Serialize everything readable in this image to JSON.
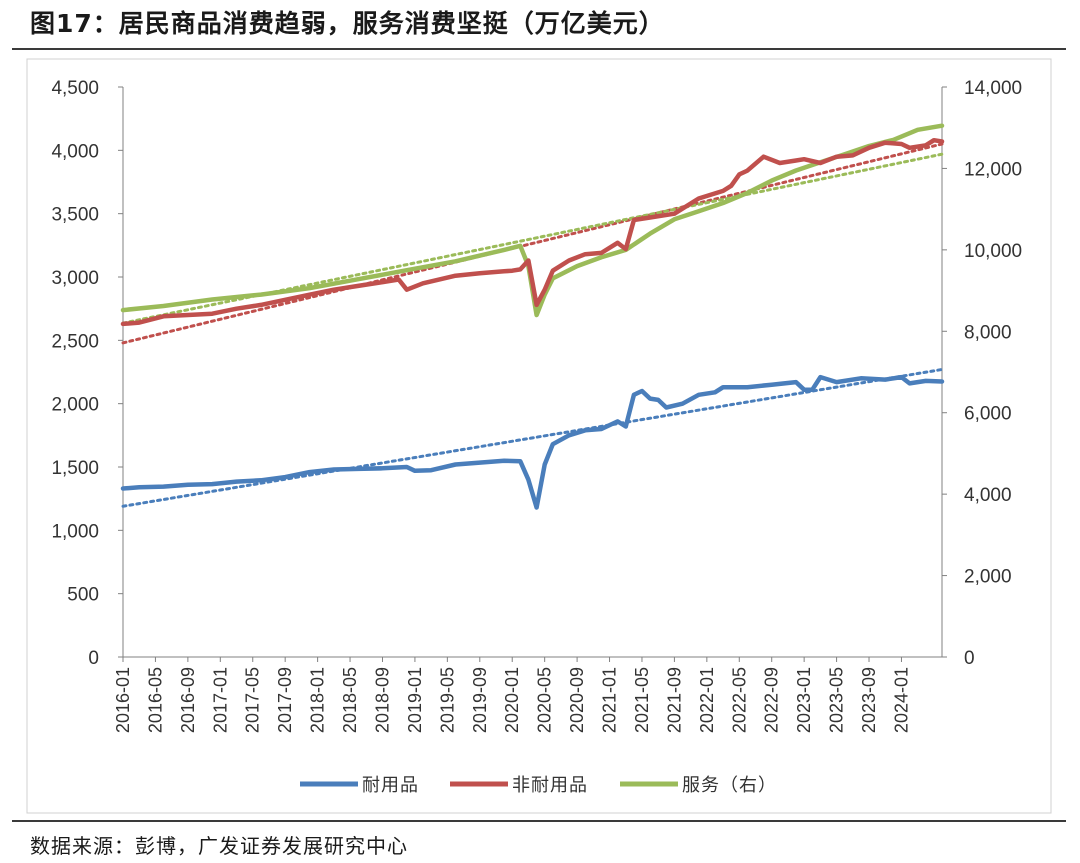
{
  "header": {
    "title": "图17：居民商品消费趋弱，服务消费坚挺（万亿美元）"
  },
  "footer": {
    "source": "数据来源：彭博，广发证券发展研究中心"
  },
  "chart_data": {
    "type": "line",
    "x_start": "2016-01",
    "x_tick_labels": [
      "2016-01",
      "2016-05",
      "2016-09",
      "2017-01",
      "2017-05",
      "2017-09",
      "2018-01",
      "2018-05",
      "2018-09",
      "2019-01",
      "2019-05",
      "2019-09",
      "2020-01",
      "2020-05",
      "2020-09",
      "2021-01",
      "2021-05",
      "2021-09",
      "2022-01",
      "2022-05",
      "2022-09",
      "2023-01",
      "2023-05",
      "2023-09",
      "2024-01"
    ],
    "y_left": {
      "ticks": [
        0,
        500,
        1000,
        1500,
        2000,
        2500,
        3000,
        3500,
        4000,
        4500
      ],
      "labels": [
        "0",
        "500",
        "1,000",
        "1,500",
        "2,000",
        "2,500",
        "3,000",
        "3,500",
        "4,000",
        "4,500"
      ],
      "min": 0,
      "max": 4500
    },
    "y_right": {
      "ticks": [
        0,
        2000,
        4000,
        6000,
        8000,
        10000,
        12000,
        14000
      ],
      "labels": [
        "0",
        "2,000",
        "4,000",
        "6,000",
        "8,000",
        "10,000",
        "12,000",
        "14,000"
      ],
      "min": 0,
      "max": 14000
    },
    "grid": false,
    "legend_position": "bottom",
    "series": [
      {
        "name": "耐用品",
        "axis": "left",
        "color": "#4a7ebb",
        "points": [
          [
            "2016-01",
            1330
          ],
          [
            "2016-03",
            1340
          ],
          [
            "2016-06",
            1345
          ],
          [
            "2016-09",
            1360
          ],
          [
            "2016-12",
            1365
          ],
          [
            "2017-03",
            1385
          ],
          [
            "2017-06",
            1395
          ],
          [
            "2017-09",
            1420
          ],
          [
            "2017-12",
            1460
          ],
          [
            "2018-03",
            1480
          ],
          [
            "2018-06",
            1485
          ],
          [
            "2018-09",
            1490
          ],
          [
            "2018-12",
            1500
          ],
          [
            "2019-01",
            1470
          ],
          [
            "2019-03",
            1475
          ],
          [
            "2019-06",
            1520
          ],
          [
            "2019-09",
            1535
          ],
          [
            "2019-12",
            1550
          ],
          [
            "2020-02",
            1545
          ],
          [
            "2020-03",
            1400
          ],
          [
            "2020-04",
            1180
          ],
          [
            "2020-05",
            1520
          ],
          [
            "2020-06",
            1680
          ],
          [
            "2020-08",
            1750
          ],
          [
            "2020-10",
            1790
          ],
          [
            "2020-12",
            1800
          ],
          [
            "2021-02",
            1860
          ],
          [
            "2021-03",
            1820
          ],
          [
            "2021-04",
            2070
          ],
          [
            "2021-05",
            2100
          ],
          [
            "2021-06",
            2040
          ],
          [
            "2021-07",
            2030
          ],
          [
            "2021-08",
            1970
          ],
          [
            "2021-10",
            2000
          ],
          [
            "2021-12",
            2070
          ],
          [
            "2022-02",
            2090
          ],
          [
            "2022-03",
            2130
          ],
          [
            "2022-06",
            2130
          ],
          [
            "2022-09",
            2150
          ],
          [
            "2022-12",
            2170
          ],
          [
            "2023-01",
            2110
          ],
          [
            "2023-02",
            2110
          ],
          [
            "2023-03",
            2210
          ],
          [
            "2023-05",
            2170
          ],
          [
            "2023-08",
            2200
          ],
          [
            "2023-11",
            2190
          ],
          [
            "2024-01",
            2210
          ],
          [
            "2024-02",
            2160
          ],
          [
            "2024-04",
            2180
          ],
          [
            "2024-06",
            2175
          ]
        ]
      },
      {
        "name": "非耐用品",
        "axis": "left",
        "color": "#c0504d",
        "points": [
          [
            "2016-01",
            2630
          ],
          [
            "2016-03",
            2640
          ],
          [
            "2016-06",
            2690
          ],
          [
            "2016-09",
            2700
          ],
          [
            "2016-12",
            2710
          ],
          [
            "2017-03",
            2750
          ],
          [
            "2017-06",
            2780
          ],
          [
            "2017-09",
            2820
          ],
          [
            "2017-12",
            2860
          ],
          [
            "2018-03",
            2900
          ],
          [
            "2018-06",
            2930
          ],
          [
            "2018-09",
            2960
          ],
          [
            "2018-11",
            2980
          ],
          [
            "2018-12",
            2900
          ],
          [
            "2019-02",
            2950
          ],
          [
            "2019-06",
            3010
          ],
          [
            "2019-09",
            3030
          ],
          [
            "2019-12",
            3045
          ],
          [
            "2020-01",
            3050
          ],
          [
            "2020-02",
            3060
          ],
          [
            "2020-03",
            3130
          ],
          [
            "2020-04",
            2780
          ],
          [
            "2020-05",
            2900
          ],
          [
            "2020-06",
            3050
          ],
          [
            "2020-08",
            3130
          ],
          [
            "2020-10",
            3180
          ],
          [
            "2020-12",
            3190
          ],
          [
            "2021-02",
            3270
          ],
          [
            "2021-03",
            3220
          ],
          [
            "2021-04",
            3450
          ],
          [
            "2021-06",
            3470
          ],
          [
            "2021-09",
            3500
          ],
          [
            "2021-12",
            3620
          ],
          [
            "2022-03",
            3680
          ],
          [
            "2022-04",
            3720
          ],
          [
            "2022-05",
            3810
          ],
          [
            "2022-06",
            3840
          ],
          [
            "2022-08",
            3950
          ],
          [
            "2022-10",
            3900
          ],
          [
            "2022-12",
            3920
          ],
          [
            "2023-01",
            3930
          ],
          [
            "2023-03",
            3900
          ],
          [
            "2023-05",
            3950
          ],
          [
            "2023-07",
            3960
          ],
          [
            "2023-09",
            4020
          ],
          [
            "2023-11",
            4060
          ],
          [
            "2024-01",
            4050
          ],
          [
            "2024-02",
            4020
          ],
          [
            "2024-04",
            4040
          ],
          [
            "2024-05",
            4080
          ],
          [
            "2024-06",
            4070
          ]
        ]
      },
      {
        "name": "服务（右）",
        "axis": "right",
        "color": "#9bbb59",
        "points": [
          [
            "2016-01",
            8520
          ],
          [
            "2016-06",
            8620
          ],
          [
            "2016-12",
            8780
          ],
          [
            "2017-06",
            8900
          ],
          [
            "2017-12",
            9060
          ],
          [
            "2018-06",
            9280
          ],
          [
            "2018-12",
            9500
          ],
          [
            "2019-06",
            9720
          ],
          [
            "2019-12",
            10000
          ],
          [
            "2020-02",
            10100
          ],
          [
            "2020-03",
            9600
          ],
          [
            "2020-04",
            8400
          ],
          [
            "2020-05",
            8900
          ],
          [
            "2020-06",
            9300
          ],
          [
            "2020-09",
            9600
          ],
          [
            "2020-12",
            9820
          ],
          [
            "2021-03",
            10000
          ],
          [
            "2021-06",
            10400
          ],
          [
            "2021-09",
            10750
          ],
          [
            "2021-12",
            10950
          ],
          [
            "2022-03",
            11150
          ],
          [
            "2022-06",
            11400
          ],
          [
            "2022-09",
            11700
          ],
          [
            "2022-12",
            11950
          ],
          [
            "2023-03",
            12150
          ],
          [
            "2023-06",
            12350
          ],
          [
            "2023-09",
            12550
          ],
          [
            "2023-12",
            12700
          ],
          [
            "2024-03",
            12950
          ],
          [
            "2024-06",
            13050
          ]
        ]
      }
    ],
    "trend_lines": [
      {
        "series": "耐用品",
        "axis": "left",
        "color": "#4a7ebb",
        "start": [
          "2016-01",
          1190
        ],
        "end": [
          "2024-06",
          2270
        ]
      },
      {
        "series": "非耐用品",
        "axis": "left",
        "color": "#c0504d",
        "start": [
          "2016-01",
          2480
        ],
        "end": [
          "2024-06",
          4050
        ]
      },
      {
        "series": "服务（右）",
        "axis": "right",
        "color": "#9bbb59",
        "start": [
          "2016-01",
          8200
        ],
        "end": [
          "2024-06",
          12350
        ]
      }
    ]
  }
}
